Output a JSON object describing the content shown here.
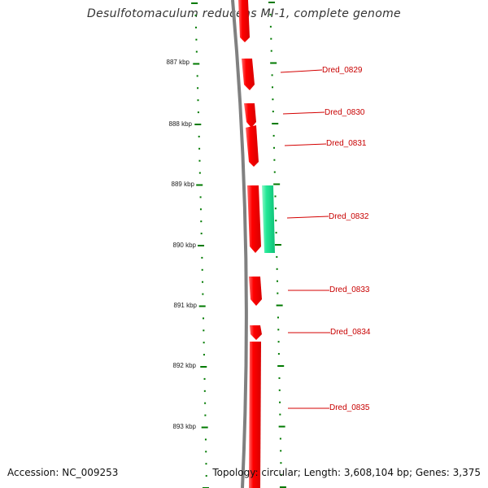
{
  "map": {
    "title": "Desulfotomaculum reducens MI-1, complete genome",
    "footer": {
      "accession": "Accession: NC_009253",
      "topology": "Topology: circular; Length: 3,608,104 bp; Genes: 3,375"
    },
    "colors": {
      "gene_forward": "#ff0000",
      "gene_reverse": "#22e896",
      "backbone": "#808080",
      "ticks": "#007a00",
      "label_text": "#c80000",
      "label_line": "#d40000",
      "scale_text": "#222222"
    },
    "scale_labels": [
      "887 kbp",
      "888 kbp",
      "889 kbp",
      "890 kbp",
      "891 kbp",
      "892 kbp",
      "893 kbp"
    ],
    "genes": [
      {
        "label": "Dred_0829"
      },
      {
        "label": "Dred_0830"
      },
      {
        "label": "Dred_0831"
      },
      {
        "label": "Dred_0832"
      },
      {
        "label": "Dred_0833"
      },
      {
        "label": "Dred_0834"
      },
      {
        "label": "Dred_0835"
      }
    ]
  }
}
